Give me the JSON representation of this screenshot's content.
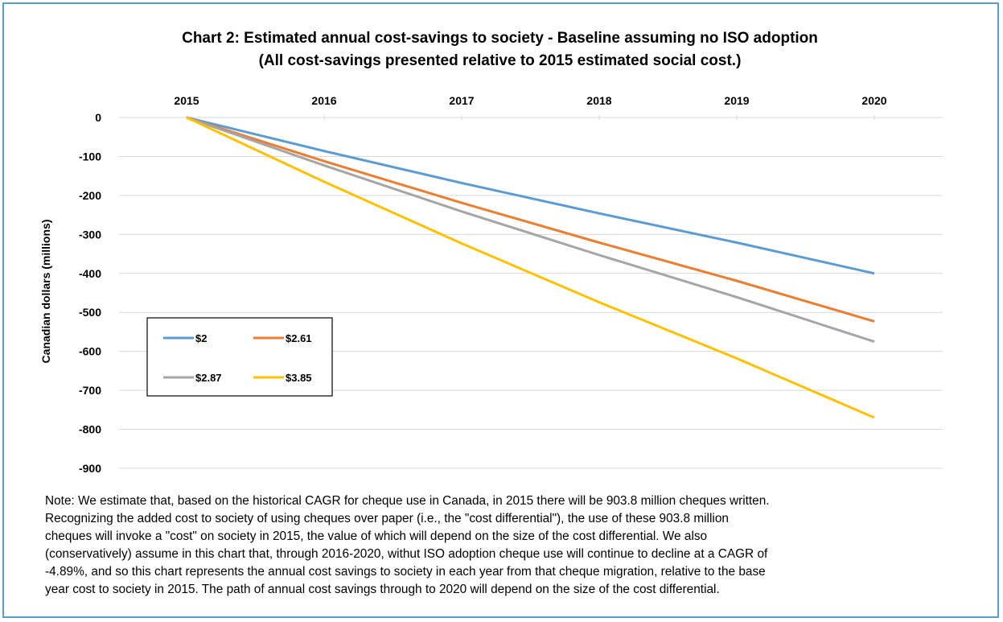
{
  "chart_data": {
    "type": "line",
    "title": "Chart 2: Estimated annual cost-savings to society - Baseline assuming no ISO adoption",
    "subtitle": "(All cost-savings presented relative to 2015 estimated social cost.)",
    "x": [
      "2015",
      "2016",
      "2017",
      "2018",
      "2019",
      "2020"
    ],
    "ylabel": "Canadian dollars (millions)",
    "xlabel": "",
    "ylim": [
      -900,
      0
    ],
    "yticks": [
      0,
      -100,
      -200,
      -300,
      -400,
      -500,
      -600,
      -700,
      -800,
      -900
    ],
    "grid": true,
    "legend_position": "lower-left",
    "series": [
      {
        "name": "$2",
        "color": "#5b9bd5",
        "values": [
          0,
          -86,
          -168,
          -246,
          -321,
          -400
        ]
      },
      {
        "name": "$2.61",
        "color": "#ed7d31",
        "values": [
          0,
          -112,
          -219,
          -321,
          -419,
          -523
        ]
      },
      {
        "name": "$2.87",
        "color": "#a5a5a5",
        "values": [
          0,
          -123,
          -241,
          -353,
          -461,
          -575
        ]
      },
      {
        "name": "$3.85",
        "color": "#ffc000",
        "values": [
          0,
          -165,
          -323,
          -474,
          -618,
          -770
        ]
      }
    ]
  },
  "note": [
    "Note: We estimate that, based on the historical CAGR for cheque use in Canada, in 2015 there will be 903.8 million cheques written.",
    "Recognizing the added cost to society of using cheques over paper (i.e., the \"cost differential\"),  the use of these 903.8 million",
    "cheques will invoke a \"cost\" on society in 2015, the value of which will depend on the size of the cost differential.  We also",
    "(conservatively)  assume in this chart that, through 2016-2020, withut ISO adoption cheque use will continue to decline at a CAGR of",
    "-4.89%, and so this chart represents the annual cost savings to society in each year from that cheque migration, relative to the base",
    "year cost to society in 2015. The path of annual cost savings through to 2020 will depend on the size of the cost differential."
  ]
}
